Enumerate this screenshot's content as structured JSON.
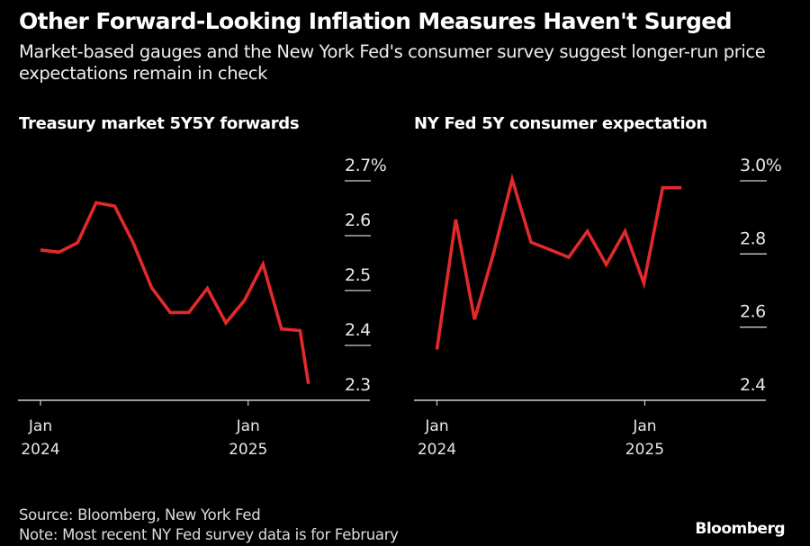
{
  "title": "Other Forward-Looking Inflation Measures Haven't Surged",
  "subtitle": "Market-based gauges and the New York Fed's consumer survey suggest longer-run price expectations remain in check",
  "footer": {
    "source": "Source: Bloomberg, New York Fed",
    "note": "Note: Most recent NY Fed survey data is for February"
  },
  "brand": "Bloomberg",
  "colors": {
    "line": "#e3292b",
    "background": "#000000",
    "text": "#ffffff",
    "axis": "#cfcfcf"
  },
  "chart_data": [
    {
      "type": "line",
      "title": "Treasury market 5Y5Y forwards",
      "xlabel": "",
      "ylabel": "",
      "ylim": [
        2.3,
        2.7
      ],
      "y_ticks": [
        2.3,
        2.4,
        2.5,
        2.6,
        2.7
      ],
      "y_tick_labels": [
        "2.3",
        "2.4",
        "2.5",
        "2.6",
        "2.7%"
      ],
      "x_ticks": [
        {
          "pos": 0,
          "label": [
            "Jan",
            "2024"
          ]
        },
        {
          "pos": 11.2,
          "label": [
            "Jan",
            "2025"
          ]
        }
      ],
      "x_range": [
        -1.2,
        17.7
      ],
      "grid": false,
      "x": [
        0,
        1,
        2,
        3,
        4,
        5,
        6,
        7,
        8,
        9,
        10,
        11,
        12,
        13,
        14,
        14.45
      ],
      "series": [
        {
          "name": "5Y5Y forward",
          "values": [
            2.574,
            2.57,
            2.587,
            2.66,
            2.654,
            2.587,
            2.505,
            2.46,
            2.46,
            2.504,
            2.441,
            2.482,
            2.548,
            2.43,
            2.427,
            2.33
          ]
        }
      ]
    },
    {
      "type": "line",
      "title": "NY Fed 5Y consumer expectation",
      "xlabel": "",
      "ylabel": "",
      "ylim": [
        2.4,
        3.0
      ],
      "y_ticks": [
        2.4,
        2.6,
        2.8,
        3.0
      ],
      "y_tick_labels": [
        "2.4",
        "2.6",
        "2.8",
        "3.0%"
      ],
      "x_ticks": [
        {
          "pos": 0,
          "label": [
            "Jan",
            "2024"
          ]
        },
        {
          "pos": 11.05,
          "label": [
            "Jan",
            "2025"
          ]
        }
      ],
      "x_range": [
        -1.2,
        17.5
      ],
      "grid": false,
      "x": [
        0,
        1,
        2,
        3,
        4,
        5,
        6,
        7,
        8,
        9,
        10,
        11,
        12,
        13
      ],
      "series": [
        {
          "name": "5Y consumer expectation",
          "values": [
            2.539,
            2.894,
            2.621,
            2.8,
            3.004,
            2.832,
            2.812,
            2.791,
            2.862,
            2.771,
            2.862,
            2.72,
            2.981,
            2.981
          ]
        }
      ]
    }
  ]
}
